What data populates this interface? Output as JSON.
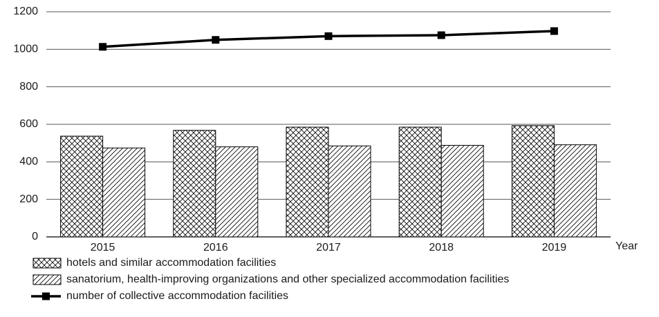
{
  "chart_data": {
    "type": "bar",
    "categories": [
      "2015",
      "2016",
      "2017",
      "2018",
      "2019"
    ],
    "xlabel": "Year",
    "series": [
      {
        "name": "hotels and similar accommodation facilities",
        "type": "bar",
        "pattern": "crosshatch",
        "color": "#000000",
        "values": [
          537,
          568,
          585,
          585,
          593
        ]
      },
      {
        "name": "sanatorium, health-improving organizations and other specialized accommodation facilities",
        "type": "bar",
        "pattern": "diagonal",
        "color": "#000000",
        "values": [
          474,
          480,
          485,
          488,
          491
        ]
      },
      {
        "name": "number of collective accommodation facilities",
        "type": "line",
        "color": "#000000",
        "values": [
          1013,
          1050,
          1070,
          1075,
          1097
        ]
      }
    ],
    "ylim": [
      0,
      1200
    ],
    "yticks": [
      0,
      200,
      400,
      600,
      800,
      1000,
      1200
    ],
    "grid": true,
    "legend": "bottom"
  }
}
